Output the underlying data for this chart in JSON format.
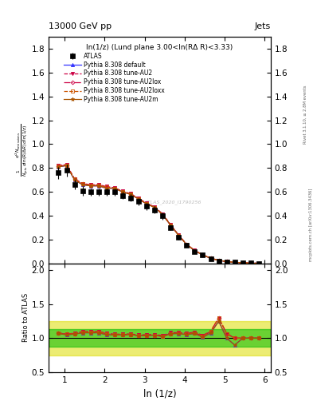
{
  "title_left": "13000 GeV pp",
  "title_right": "Jets",
  "panel_title": "ln(1/z) (Lund plane 3.00<ln(RΔ R)<3.33)",
  "xlabel": "ln (1/z)",
  "ylabel_main": "$\\frac{1}{N_{\\rm jets}}\\frac{d^2 N_{\\rm emissions}}{d\\ln(R/\\Delta R)\\, d\\ln(1/z)}$",
  "ylabel_ratio": "Ratio to ATLAS",
  "right_label": "Rivet 3.1.10, ≥ 2.8M events",
  "right_label2": "mcplots.cern.ch [arXiv:1306.3436]",
  "watermark": "ATLAS_2020_I1790256",
  "atlas_x": [
    0.85,
    1.05,
    1.25,
    1.45,
    1.65,
    1.85,
    2.05,
    2.25,
    2.45,
    2.65,
    2.85,
    3.05,
    3.25,
    3.45,
    3.65,
    3.85,
    4.05,
    4.25,
    4.45,
    4.65,
    4.85,
    5.05,
    5.25,
    5.45,
    5.65,
    5.85
  ],
  "atlas_y": [
    0.76,
    0.78,
    0.66,
    0.61,
    0.6,
    0.6,
    0.6,
    0.6,
    0.57,
    0.55,
    0.52,
    0.48,
    0.45,
    0.4,
    0.3,
    0.22,
    0.15,
    0.1,
    0.07,
    0.04,
    0.02,
    0.015,
    0.01,
    0.005,
    0.003,
    0.001
  ],
  "atlas_yerr": [
    0.05,
    0.05,
    0.04,
    0.04,
    0.03,
    0.03,
    0.03,
    0.03,
    0.03,
    0.03,
    0.03,
    0.03,
    0.03,
    0.03,
    0.02,
    0.02,
    0.01,
    0.01,
    0.005,
    0.003,
    0.002,
    0.001,
    0.001,
    0.0005,
    0.0003,
    0.0001
  ],
  "default_y": [
    0.81,
    0.82,
    0.7,
    0.66,
    0.65,
    0.65,
    0.63,
    0.63,
    0.6,
    0.58,
    0.54,
    0.5,
    0.47,
    0.41,
    0.32,
    0.235,
    0.158,
    0.107,
    0.071,
    0.043,
    0.025,
    0.015,
    0.009,
    0.005,
    0.003,
    0.001
  ],
  "au2_y": [
    0.82,
    0.83,
    0.71,
    0.67,
    0.66,
    0.66,
    0.645,
    0.635,
    0.605,
    0.585,
    0.545,
    0.505,
    0.475,
    0.415,
    0.325,
    0.238,
    0.161,
    0.109,
    0.073,
    0.044,
    0.026,
    0.016,
    0.01,
    0.005,
    0.003,
    0.001
  ],
  "au2lox_y": [
    0.815,
    0.825,
    0.705,
    0.665,
    0.655,
    0.655,
    0.64,
    0.63,
    0.6,
    0.58,
    0.54,
    0.5,
    0.47,
    0.41,
    0.32,
    0.236,
    0.159,
    0.108,
    0.072,
    0.044,
    0.026,
    0.016,
    0.01,
    0.005,
    0.003,
    0.001
  ],
  "au2loxx_y": [
    0.815,
    0.825,
    0.705,
    0.665,
    0.655,
    0.655,
    0.64,
    0.63,
    0.6,
    0.58,
    0.54,
    0.5,
    0.47,
    0.41,
    0.32,
    0.236,
    0.159,
    0.108,
    0.072,
    0.044,
    0.026,
    0.016,
    0.01,
    0.005,
    0.003,
    0.001
  ],
  "au2m_y": [
    0.81,
    0.82,
    0.7,
    0.66,
    0.65,
    0.65,
    0.63,
    0.63,
    0.6,
    0.58,
    0.54,
    0.5,
    0.47,
    0.41,
    0.32,
    0.235,
    0.158,
    0.107,
    0.071,
    0.043,
    0.025,
    0.015,
    0.009,
    0.005,
    0.003,
    0.001
  ],
  "ratio_default_y": [
    1.07,
    1.05,
    1.06,
    1.08,
    1.08,
    1.08,
    1.05,
    1.05,
    1.05,
    1.055,
    1.038,
    1.042,
    1.044,
    1.025,
    1.067,
    1.068,
    1.053,
    1.07,
    1.014,
    1.075,
    1.25,
    1.0,
    0.9,
    1.0,
    1.0,
    1.0
  ],
  "ratio_au2_y": [
    1.08,
    1.06,
    1.076,
    1.098,
    1.1,
    1.1,
    1.074,
    1.058,
    1.061,
    1.063,
    1.048,
    1.052,
    1.056,
    1.038,
    1.083,
    1.082,
    1.073,
    1.09,
    1.043,
    1.1,
    1.3,
    1.067,
    1.0,
    1.0,
    1.0,
    1.0
  ],
  "ratio_au2lox_y": [
    1.072,
    1.058,
    1.068,
    1.09,
    1.092,
    1.092,
    1.067,
    1.05,
    1.053,
    1.055,
    1.038,
    1.042,
    1.044,
    1.025,
    1.067,
    1.073,
    1.06,
    1.08,
    1.029,
    1.1,
    1.3,
    1.067,
    1.0,
    1.0,
    1.0,
    1.0
  ],
  "ratio_au2loxx_y": [
    1.072,
    1.058,
    1.068,
    1.09,
    1.092,
    1.092,
    1.067,
    1.05,
    1.053,
    1.055,
    1.038,
    1.042,
    1.044,
    1.025,
    1.067,
    1.073,
    1.06,
    1.08,
    1.029,
    1.1,
    1.3,
    1.067,
    1.0,
    1.0,
    1.0,
    1.0
  ],
  "ratio_au2m_y": [
    1.07,
    1.05,
    1.06,
    1.08,
    1.08,
    1.08,
    1.05,
    1.05,
    1.05,
    1.055,
    1.038,
    1.042,
    1.044,
    1.025,
    1.067,
    1.068,
    1.053,
    1.07,
    1.014,
    1.075,
    1.25,
    1.0,
    0.9,
    1.0,
    1.0,
    1.0
  ],
  "yellow_lo": 0.75,
  "yellow_hi": 1.25,
  "green_lo": 0.88,
  "green_hi": 1.13,
  "color_default": "#3333ff",
  "color_au2": "#cc0044",
  "color_au2lox": "#cc0044",
  "color_au2loxx": "#cc5500",
  "color_au2m": "#aa5500",
  "color_green": "#00bb00",
  "color_yellow": "#dddd00",
  "xlim": [
    0.6,
    6.15
  ],
  "ylim_main": [
    0.0,
    1.9
  ],
  "ylim_ratio": [
    0.5,
    2.1
  ],
  "yticks_main": [
    0.0,
    0.2,
    0.4,
    0.6,
    0.8,
    1.0,
    1.2,
    1.4,
    1.6,
    1.8
  ],
  "yticks_ratio": [
    0.5,
    1.0,
    1.5,
    2.0
  ],
  "xticks": [
    1,
    2,
    3,
    4,
    5,
    6
  ]
}
